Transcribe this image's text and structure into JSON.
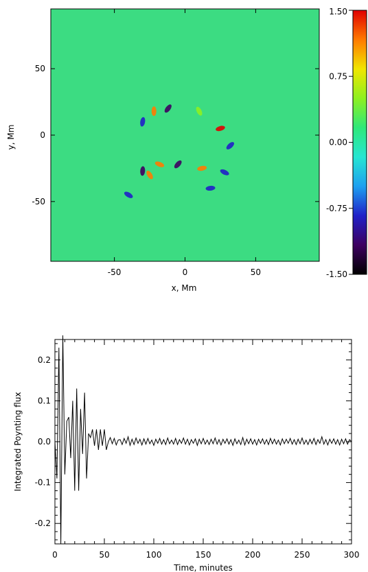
{
  "chart_data": [
    {
      "type": "heatmap",
      "title": "",
      "xlabel": "x, Mm",
      "ylabel": "y, Mm",
      "xlim": [
        -95,
        95
      ],
      "ylim": [
        -95,
        95
      ],
      "x_ticks": [
        -50,
        0,
        50
      ],
      "y_ticks": [
        50,
        0,
        -50
      ],
      "x_tick_labels": [
        "-50",
        "0",
        "50"
      ],
      "y_tick_labels": [
        "50",
        "0",
        "-50"
      ],
      "colorbar": {
        "range": [
          -1.5,
          1.5
        ],
        "ticks": [
          1.5,
          0.75,
          0.0,
          -0.75,
          -1.5
        ],
        "tick_labels": [
          "1.50",
          "0.75",
          "0.00",
          "-0.75",
          "-1.50"
        ],
        "colormap": "rainbow",
        "colors": [
          "#000000",
          "#3d0060",
          "#2020c8",
          "#1ea0f0",
          "#26e6d2",
          "#2ee87a",
          "#8ef020",
          "#f0e600",
          "#ff7a00",
          "#e00000"
        ]
      },
      "background_color": "#3cdc82",
      "features": [
        {
          "x": -22,
          "y": 18,
          "value": 1.2
        },
        {
          "x": -12,
          "y": 20,
          "value": -1.3
        },
        {
          "x": 25,
          "y": 5,
          "value": 1.4
        },
        {
          "x": -18,
          "y": -22,
          "value": 1.0
        },
        {
          "x": -25,
          "y": -30,
          "value": 1.3
        },
        {
          "x": -30,
          "y": -27,
          "value": -1.2
        },
        {
          "x": -5,
          "y": -22,
          "value": -1.1
        },
        {
          "x": 12,
          "y": -25,
          "value": 1.0
        },
        {
          "x": 28,
          "y": -28,
          "value": -1.0
        },
        {
          "x": 10,
          "y": 18,
          "value": 0.6
        },
        {
          "x": -30,
          "y": 10,
          "value": -1.0
        },
        {
          "x": 32,
          "y": -8,
          "value": -0.9
        },
        {
          "x": 18,
          "y": -40,
          "value": -0.8
        },
        {
          "x": -40,
          "y": -45,
          "value": -0.7
        }
      ]
    },
    {
      "type": "line",
      "title": "",
      "xlabel": "Time, minutes",
      "ylabel": "Integrated Poynting flux",
      "xlim": [
        0,
        300
      ],
      "ylim": [
        -0.25,
        0.25
      ],
      "x_ticks": [
        0,
        50,
        100,
        150,
        200,
        250,
        300
      ],
      "x_tick_labels": [
        "0",
        "50",
        "100",
        "150",
        "200",
        "250",
        "300"
      ],
      "y_ticks": [
        -0.2,
        -0.1,
        0.0,
        0.1,
        0.2
      ],
      "y_tick_labels": [
        "-0.2",
        "-0.1",
        "0.0",
        "0.1",
        "0.2"
      ],
      "series": [
        {
          "x": [
            0,
            2,
            4,
            6,
            8,
            10,
            12,
            14,
            16,
            18,
            20,
            22,
            24,
            26,
            28,
            30,
            32,
            34,
            36,
            38,
            40,
            42,
            44,
            46,
            48,
            50,
            52,
            54,
            56,
            58,
            60,
            62,
            64,
            66,
            68,
            70,
            72,
            74,
            76,
            78,
            80,
            82,
            84,
            86,
            88,
            90,
            92,
            94,
            96,
            98,
            100,
            102,
            104,
            106,
            108,
            110,
            112,
            114,
            116,
            118,
            120,
            122,
            124,
            126,
            128,
            130,
            132,
            134,
            136,
            138,
            140,
            142,
            144,
            146,
            148,
            150,
            152,
            154,
            156,
            158,
            160,
            162,
            164,
            166,
            168,
            170,
            172,
            174,
            176,
            178,
            180,
            182,
            184,
            186,
            188,
            190,
            192,
            194,
            196,
            198,
            200,
            202,
            204,
            206,
            208,
            210,
            212,
            214,
            216,
            218,
            220,
            222,
            224,
            226,
            228,
            230,
            232,
            234,
            236,
            238,
            240,
            242,
            244,
            246,
            248,
            250,
            252,
            254,
            256,
            258,
            260,
            262,
            264,
            266,
            268,
            270,
            272,
            274,
            276,
            278,
            280,
            282,
            284,
            286,
            288,
            290,
            292,
            294,
            296,
            298,
            300
          ],
          "y": [
            0.0,
            -0.09,
            0.23,
            -0.25,
            0.28,
            -0.08,
            0.05,
            0.06,
            -0.04,
            0.1,
            -0.12,
            0.13,
            -0.12,
            0.08,
            -0.03,
            0.12,
            -0.09,
            0.02,
            0.01,
            0.03,
            -0.01,
            0.03,
            -0.02,
            0.03,
            -0.01,
            0.03,
            -0.02,
            0.0,
            0.01,
            -0.005,
            0.008,
            -0.008,
            0.004,
            0.005,
            -0.007,
            0.008,
            -0.004,
            0.012,
            -0.009,
            0.006,
            -0.007,
            0.009,
            -0.004,
            0.006,
            -0.008,
            0.007,
            -0.006,
            0.008,
            -0.005,
            0.004,
            -0.009,
            0.006,
            -0.004,
            0.008,
            -0.006,
            0.005,
            -0.007,
            0.009,
            -0.005,
            0.004,
            -0.006,
            0.008,
            -0.007,
            0.005,
            -0.004,
            0.009,
            -0.006,
            0.006,
            -0.008,
            0.005,
            -0.004,
            0.007,
            -0.009,
            0.006,
            -0.005,
            0.008,
            -0.006,
            0.004,
            -0.007,
            0.006,
            -0.005,
            0.009,
            -0.006,
            0.005,
            -0.008,
            0.006,
            -0.004,
            0.007,
            -0.006,
            0.005,
            -0.009,
            0.007,
            -0.005,
            0.004,
            -0.007,
            0.01,
            -0.008,
            0.006,
            -0.005,
            0.007,
            -0.006,
            0.005,
            -0.008,
            0.006,
            -0.004,
            0.007,
            -0.006,
            0.005,
            -0.007,
            0.008,
            -0.005,
            0.006,
            -0.006,
            0.004,
            -0.008,
            0.007,
            -0.005,
            0.006,
            -0.004,
            0.008,
            -0.006,
            0.005,
            -0.007,
            0.006,
            -0.005,
            0.009,
            -0.006,
            0.004,
            -0.007,
            0.006,
            -0.005,
            0.008,
            -0.007,
            0.005,
            -0.004,
            0.012,
            -0.006,
            0.005,
            -0.008,
            0.006,
            -0.004,
            0.007,
            -0.006,
            0.005,
            -0.008,
            0.006,
            -0.005,
            0.007,
            -0.006,
            0.005,
            0.0
          ]
        }
      ]
    }
  ]
}
